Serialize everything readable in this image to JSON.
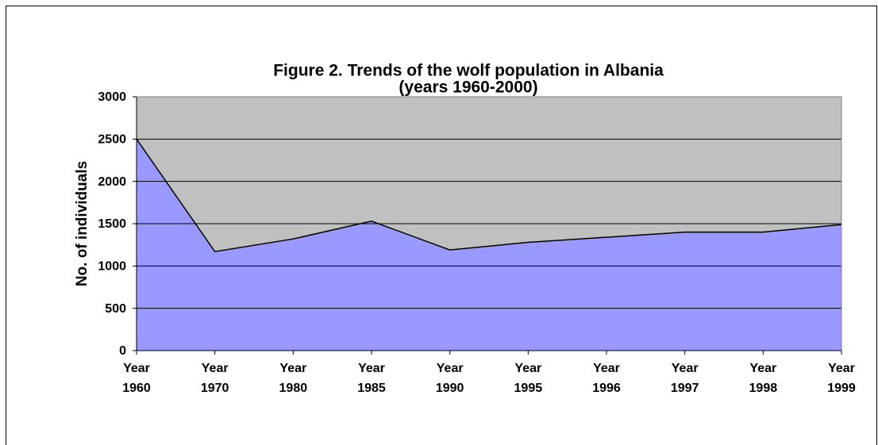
{
  "chart_data": {
    "type": "area",
    "title": [
      "Figure 2. Trends of the wolf population in Albania",
      "(years 1960-2000)"
    ],
    "y_label": "No. of individuals",
    "categories": [
      "Year 1960",
      "Year 1970",
      "Year 1980",
      "Year 1985",
      "Year 1990",
      "Year 1995",
      "Year 1996",
      "Year 1997",
      "Year 1998",
      "Year 1999"
    ],
    "values": [
      2500,
      1170,
      1320,
      1530,
      1190,
      1280,
      1340,
      1400,
      1400,
      1490
    ],
    "color": "#9999ff",
    "plot_background": "#c0c0c0",
    "ylim": [
      0,
      3000
    ],
    "yticks": [
      0,
      500,
      1000,
      1500,
      2000,
      2500,
      3000
    ],
    "grid": true
  }
}
